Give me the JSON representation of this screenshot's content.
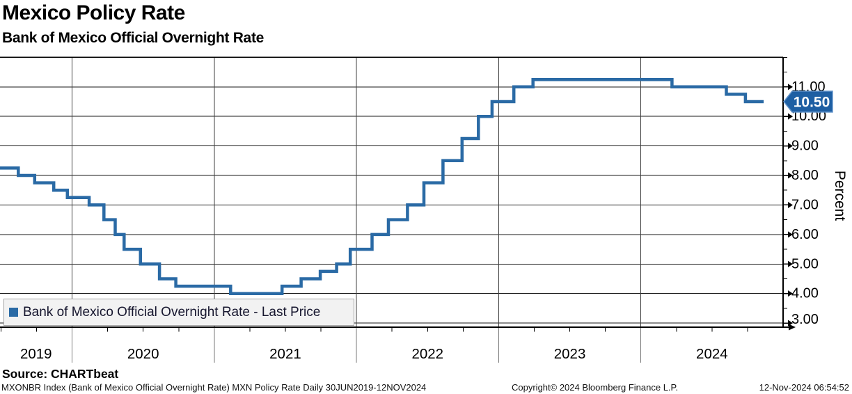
{
  "title": "Mexico Policy Rate",
  "subtitle": "Bank of Mexico Official Overnight Rate",
  "source_line": "Source: CHARTbeat",
  "footer": {
    "left": "MXONBR Index (Bank of Mexico Official Overnight Rate) MXN Policy Rate  Daily 30JUN2019-12NOV2024",
    "center": "Copyright© 2024 Bloomberg Finance L.P.",
    "right": "12-Nov-2024 06:54:52"
  },
  "legend": {
    "label": "Bank of Mexico Official Overnight Rate - Last Price",
    "swatch_color": "#2a6aa5"
  },
  "y_axis": {
    "title": "Percent",
    "tick_values": [
      3,
      4,
      5,
      6,
      7,
      8,
      9,
      10,
      11
    ],
    "tick_labels": [
      "3.00",
      "4.00",
      "5.00",
      "6.00",
      "7.00",
      "8.00",
      "9.00",
      "10.00",
      "11.00"
    ]
  },
  "x_axis": {
    "year_labels": [
      "2019",
      "2020",
      "2021",
      "2022",
      "2023",
      "2024"
    ]
  },
  "last_price": {
    "label": "10.50",
    "value": 10.5,
    "flag_fill": "#1e5fa3",
    "flag_border": "#5d8fc7"
  },
  "chart_data": {
    "type": "line",
    "step": true,
    "title": "Mexico Policy Rate",
    "subtitle": "Bank of Mexico Official Overnight Rate",
    "series_name": "Bank of Mexico Official Overnight Rate - Last Price",
    "line_color": "#2a6aa5",
    "xlabel": "",
    "ylabel": "Percent",
    "xlim_yearfrac": [
      2019.4932,
      2025.0
    ],
    "ylim": [
      2.86,
      12.01
    ],
    "grid": true,
    "legend_position": "bottom-left",
    "x_range_label": "30JUN2019-12NOV2024",
    "end_date": "2024-11-12",
    "points": [
      {
        "date": "2019-06-30",
        "rate": 8.25
      },
      {
        "date": "2019-08-16",
        "rate": 8.0
      },
      {
        "date": "2019-09-27",
        "rate": 7.75
      },
      {
        "date": "2019-11-15",
        "rate": 7.5
      },
      {
        "date": "2019-12-20",
        "rate": 7.25
      },
      {
        "date": "2020-02-14",
        "rate": 7.0
      },
      {
        "date": "2020-03-23",
        "rate": 6.5
      },
      {
        "date": "2020-04-21",
        "rate": 6.0
      },
      {
        "date": "2020-05-14",
        "rate": 5.5
      },
      {
        "date": "2020-06-25",
        "rate": 5.0
      },
      {
        "date": "2020-08-13",
        "rate": 4.5
      },
      {
        "date": "2020-09-24",
        "rate": 4.25
      },
      {
        "date": "2021-02-12",
        "rate": 4.0
      },
      {
        "date": "2021-06-24",
        "rate": 4.25
      },
      {
        "date": "2021-08-12",
        "rate": 4.5
      },
      {
        "date": "2021-09-30",
        "rate": 4.75
      },
      {
        "date": "2021-11-11",
        "rate": 5.0
      },
      {
        "date": "2021-12-16",
        "rate": 5.5
      },
      {
        "date": "2022-02-10",
        "rate": 6.0
      },
      {
        "date": "2022-03-24",
        "rate": 6.5
      },
      {
        "date": "2022-05-12",
        "rate": 7.0
      },
      {
        "date": "2022-06-23",
        "rate": 7.75
      },
      {
        "date": "2022-08-11",
        "rate": 8.5
      },
      {
        "date": "2022-09-29",
        "rate": 9.25
      },
      {
        "date": "2022-11-10",
        "rate": 10.0
      },
      {
        "date": "2022-12-15",
        "rate": 10.5
      },
      {
        "date": "2023-02-09",
        "rate": 11.0
      },
      {
        "date": "2023-03-30",
        "rate": 11.25
      },
      {
        "date": "2024-03-21",
        "rate": 11.0
      },
      {
        "date": "2024-08-08",
        "rate": 10.75
      },
      {
        "date": "2024-09-26",
        "rate": 10.5
      }
    ]
  }
}
